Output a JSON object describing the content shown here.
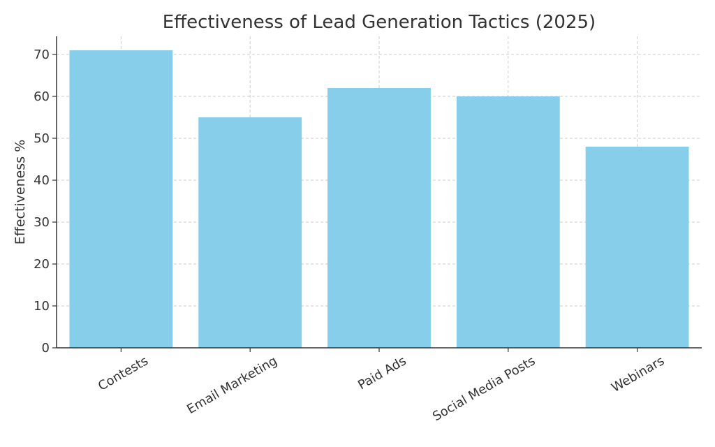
{
  "chart_data": {
    "type": "bar",
    "title": "Effectiveness of Lead Generation Tactics (2025)",
    "xlabel": "",
    "ylabel": "Effectiveness %",
    "categories": [
      "Contests",
      "Email Marketing",
      "Paid Ads",
      "Social Media Posts",
      "Webinars"
    ],
    "values": [
      71,
      55,
      62,
      60,
      48
    ],
    "ylim": [
      0,
      75
    ],
    "yticks": [
      0,
      10,
      20,
      30,
      40,
      50,
      60,
      70
    ],
    "grid": true,
    "bar_color": "#87CEEB"
  }
}
